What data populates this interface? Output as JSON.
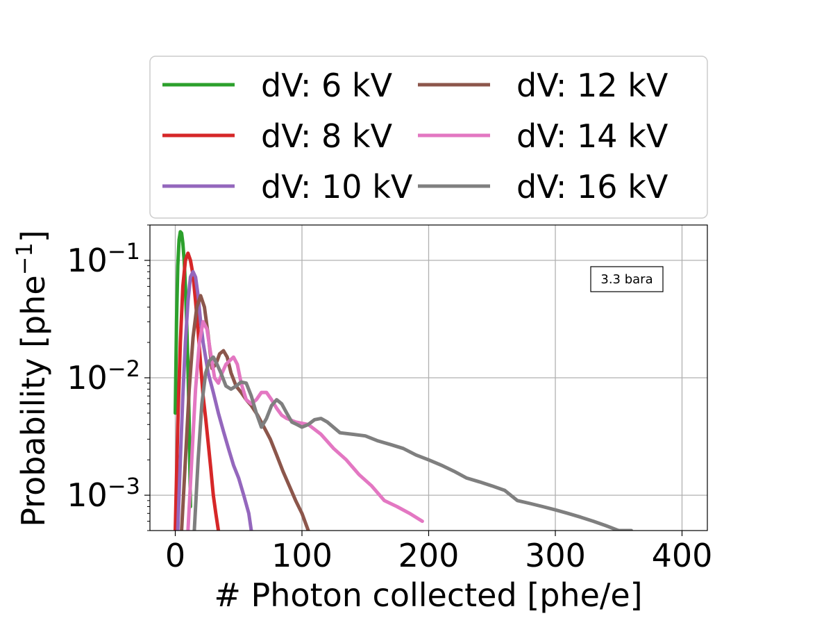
{
  "chart_data": {
    "type": "line",
    "title": "",
    "xlabel": "# Photon collected [phe/e]",
    "ylabel": "Probability [phe",
    "ylabel_superscript": "−1",
    "ylabel_suffix": "]",
    "xlim": [
      -20,
      420
    ],
    "ylim": [
      0.0005,
      0.2
    ],
    "yscale": "log",
    "grid": true,
    "xticks": [
      0,
      100,
      200,
      300,
      400
    ],
    "xtick_labels": [
      "0",
      "100",
      "200",
      "300",
      "400"
    ],
    "yticks": [
      0.001,
      0.01,
      0.1
    ],
    "ytick_base": "10",
    "ytick_exponents": [
      "−3",
      "−2",
      "−1"
    ],
    "legend_position": "top-center (above plot), 2 columns",
    "annotation": "3.3 bara",
    "series": [
      {
        "name": "dV: 6 kV",
        "color": "#2ca02c",
        "x": [
          0,
          1,
          2,
          3,
          4,
          5,
          6,
          7,
          8,
          9,
          10,
          11,
          12
        ],
        "y": [
          0.005,
          0.03,
          0.09,
          0.15,
          0.175,
          0.17,
          0.14,
          0.1,
          0.06,
          0.03,
          0.012,
          0.004,
          0.0008
        ]
      },
      {
        "name": "dV: 8 kV",
        "color": "#d62728",
        "x": [
          0,
          2,
          4,
          6,
          8,
          10,
          12,
          14,
          16,
          18,
          20,
          22,
          24,
          26,
          28,
          30,
          32,
          34
        ],
        "y": [
          0.0005,
          0.004,
          0.02,
          0.06,
          0.1,
          0.115,
          0.1,
          0.075,
          0.045,
          0.025,
          0.013,
          0.007,
          0.0045,
          0.0028,
          0.0017,
          0.001,
          0.0007,
          0.0005
        ]
      },
      {
        "name": "dV: 10 kV",
        "color": "#9467bd",
        "x": [
          2,
          4,
          6,
          8,
          10,
          12,
          14,
          16,
          18,
          20,
          22,
          26,
          30,
          34,
          38,
          42,
          46,
          50,
          54,
          58,
          60
        ],
        "y": [
          0.0005,
          0.002,
          0.007,
          0.02,
          0.045,
          0.072,
          0.08,
          0.072,
          0.05,
          0.03,
          0.02,
          0.011,
          0.0075,
          0.005,
          0.0035,
          0.0025,
          0.0018,
          0.0014,
          0.001,
          0.0007,
          0.0005
        ]
      },
      {
        "name": "dV: 12 kV",
        "color": "#8c564b",
        "x": [
          5,
          8,
          11,
          14,
          17,
          20,
          23,
          26,
          29,
          32,
          35,
          38,
          41,
          44,
          48,
          52,
          56,
          60,
          65,
          70,
          75,
          80,
          85,
          90,
          95,
          100,
          105
        ],
        "y": [
          0.0005,
          0.002,
          0.008,
          0.022,
          0.04,
          0.05,
          0.04,
          0.023,
          0.012,
          0.013,
          0.016,
          0.017,
          0.015,
          0.011,
          0.0085,
          0.0075,
          0.0065,
          0.0058,
          0.0048,
          0.0038,
          0.003,
          0.0022,
          0.0016,
          0.0012,
          0.0009,
          0.0007,
          0.0005
        ]
      },
      {
        "name": "dV: 14 kV",
        "color": "#e377c2",
        "x": [
          10,
          13,
          16,
          19,
          22,
          25,
          28,
          31,
          34,
          37,
          40,
          43,
          46,
          49,
          52,
          56,
          60,
          64,
          68,
          72,
          76,
          80,
          84,
          88,
          95,
          105,
          115,
          125,
          135,
          145,
          155,
          165,
          175,
          185,
          195
        ],
        "y": [
          0.0005,
          0.002,
          0.008,
          0.02,
          0.03,
          0.026,
          0.016,
          0.01,
          0.009,
          0.011,
          0.013,
          0.014,
          0.015,
          0.013,
          0.009,
          0.0065,
          0.006,
          0.0065,
          0.0075,
          0.0075,
          0.0065,
          0.0055,
          0.0048,
          0.0045,
          0.0042,
          0.004,
          0.0033,
          0.0025,
          0.002,
          0.0015,
          0.0012,
          0.0009,
          0.0008,
          0.0007,
          0.0006
        ]
      },
      {
        "name": "dV: 16 kV",
        "color": "#7f7f7f",
        "x": [
          15,
          18,
          21,
          24,
          27,
          30,
          33,
          36,
          40,
          44,
          48,
          52,
          56,
          60,
          64,
          68,
          72,
          76,
          80,
          84,
          88,
          92,
          96,
          100,
          105,
          110,
          115,
          120,
          130,
          140,
          150,
          160,
          170,
          180,
          190,
          200,
          210,
          220,
          230,
          240,
          250,
          260,
          270,
          280,
          290,
          300,
          310,
          320,
          330,
          340,
          350,
          360
        ],
        "y": [
          0.0005,
          0.002,
          0.006,
          0.011,
          0.014,
          0.015,
          0.013,
          0.011,
          0.0085,
          0.008,
          0.0085,
          0.0092,
          0.009,
          0.007,
          0.005,
          0.0038,
          0.0045,
          0.0058,
          0.0065,
          0.006,
          0.005,
          0.0042,
          0.004,
          0.0038,
          0.004,
          0.0044,
          0.0045,
          0.0042,
          0.0034,
          0.0033,
          0.0032,
          0.0029,
          0.0027,
          0.0025,
          0.0022,
          0.002,
          0.0018,
          0.0016,
          0.0014,
          0.0013,
          0.0012,
          0.0011,
          0.0009,
          0.00085,
          0.0008,
          0.00075,
          0.0007,
          0.00065,
          0.0006,
          0.00055,
          0.0005,
          0.0005
        ]
      }
    ]
  }
}
